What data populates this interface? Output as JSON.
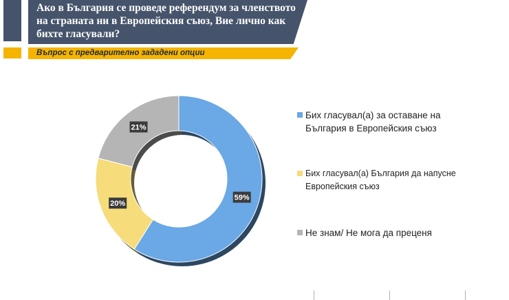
{
  "header": {
    "title": "Ако в България се проведе референдум за членството на страната ни в Европейския съюз, Вие лично как бихте гласували?",
    "subtitle": "Въпрос с предварително зададени опции"
  },
  "colors": {
    "header_bg": "#45536b",
    "subtitle_bg": "#f5b400",
    "remain": "#6aa8e6",
    "leave": "#f6dc7a",
    "dont_know": "#b5b5b5"
  },
  "chart_data": {
    "type": "pie",
    "donut": true,
    "title": "Ако в България се проведе референдум за членството на страната ни в Европейския съюз, Вие лично как бихте гласували?",
    "legend_position": "right",
    "slices": [
      {
        "label": "Бих гласувал(а) за оставане на България в Европейския съюз",
        "value": 59,
        "display": "59%",
        "color": "#6aa8e6"
      },
      {
        "label": "Бих гласувал(а) България да напусне Европейския съюз",
        "value": 20,
        "display": "20%",
        "color": "#f6dc7a"
      },
      {
        "label": "Не знам/ Не мога да преценя",
        "value": 21,
        "display": "21%",
        "color": "#b5b5b5"
      }
    ]
  }
}
